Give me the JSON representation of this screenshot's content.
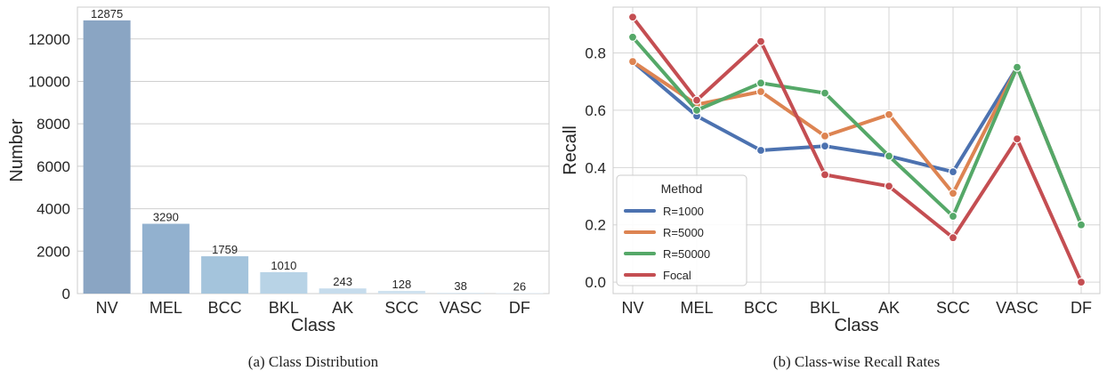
{
  "charts": [
    {
      "chart_data": {
        "type": "bar",
        "caption": "(a)  Class Distribution",
        "xlabel": "Class",
        "ylabel": "Number",
        "categories": [
          "NV",
          "MEL",
          "BCC",
          "BKL",
          "AK",
          "SCC",
          "VASC",
          "DF"
        ],
        "values": [
          12875,
          3290,
          1759,
          1010,
          243,
          128,
          38,
          26
        ],
        "data_labels": [
          "12875",
          "3290",
          "1759",
          "1010",
          "243",
          "128",
          "38",
          "26"
        ],
        "ylim": [
          0,
          13500
        ],
        "yticks": [
          0,
          2000,
          4000,
          6000,
          8000,
          10000,
          12000
        ],
        "ytick_labels": [
          "0",
          "2000",
          "4000",
          "6000",
          "8000",
          "10000",
          "12000"
        ],
        "grid": true,
        "colors": [
          "#8aa5c3",
          "#92b1cf",
          "#a4c4dc",
          "#b8d3e6",
          "#c6dcec",
          "#cfe2ef",
          "#d8e7f2",
          "#deebf4"
        ]
      }
    },
    {
      "chart_data": {
        "type": "line",
        "caption": "(b)  Class-wise Recall Rates",
        "xlabel": "Class",
        "ylabel": "Recall",
        "categories": [
          "NV",
          "MEL",
          "BCC",
          "BKL",
          "AK",
          "SCC",
          "VASC",
          "DF"
        ],
        "ylim": [
          -0.04,
          0.96
        ],
        "yticks": [
          0.0,
          0.2,
          0.4,
          0.6,
          0.8
        ],
        "ytick_labels": [
          "0.0",
          "0.2",
          "0.4",
          "0.6",
          "0.8"
        ],
        "grid": true,
        "legend": {
          "title": "Method",
          "placement": "lower-left"
        },
        "series": [
          {
            "name": "R=1000",
            "color": "#4c72b0",
            "values": [
              0.77,
              0.58,
              0.46,
              0.475,
              0.44,
              0.385,
              0.75,
              0.2
            ]
          },
          {
            "name": "R=5000",
            "color": "#dd8452",
            "values": [
              0.77,
              0.62,
              0.665,
              0.51,
              0.585,
              0.31,
              0.75,
              0.2
            ]
          },
          {
            "name": "R=50000",
            "color": "#55a868",
            "values": [
              0.855,
              0.6,
              0.695,
              0.66,
              0.44,
              0.23,
              0.75,
              0.2
            ]
          },
          {
            "name": "Focal",
            "color": "#c44e52",
            "values": [
              0.925,
              0.635,
              0.84,
              0.375,
              0.335,
              0.155,
              0.5,
              0.0
            ]
          }
        ]
      }
    }
  ]
}
